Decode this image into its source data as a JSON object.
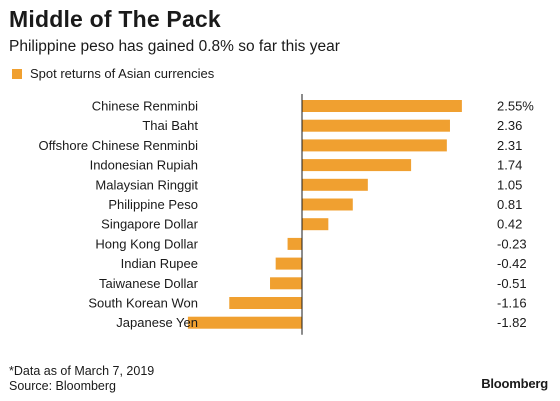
{
  "colors": {
    "bar": "#F0A030",
    "text": "#1a1a1a",
    "axis": "#1a1a1a"
  },
  "header": {
    "title": "Middle of The Pack",
    "subtitle": "Philippine peso has gained 0.8% so far this year"
  },
  "footer": {
    "note": "*Data as of March 7, 2019",
    "source": "Source: Bloomberg",
    "brand": "Bloomberg"
  },
  "chart_data": {
    "type": "bar",
    "orientation": "horizontal",
    "title": "Middle of The Pack",
    "subtitle": "Philippine peso has gained 0.8% so far this year",
    "legend": "Spot returns of Asian currencies",
    "categories": [
      "Chinese Renminbi",
      "Thai Baht",
      "Offshore Chinese Renminbi",
      "Indonesian Rupiah",
      "Malaysian Ringgit",
      "Philippine Peso",
      "Singapore Dollar",
      "Hong Kong Dollar",
      "Indian Rupee",
      "Taiwanese Dollar",
      "South Korean Won",
      "Japanese Yen"
    ],
    "values": [
      2.55,
      2.36,
      2.31,
      1.74,
      1.05,
      0.81,
      0.42,
      -0.23,
      -0.42,
      -0.51,
      -1.16,
      -1.82
    ],
    "value_labels": [
      "2.55%",
      "2.36",
      "2.31",
      "1.74",
      "1.05",
      "0.81",
      "0.42",
      "-0.23",
      "-0.42",
      "-0.51",
      "-1.16",
      "-1.82"
    ],
    "xlim": [
      -1.82,
      2.55
    ]
  }
}
